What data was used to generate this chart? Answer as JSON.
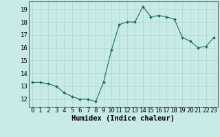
{
  "x": [
    0,
    1,
    2,
    3,
    4,
    5,
    6,
    7,
    8,
    9,
    10,
    11,
    12,
    13,
    14,
    15,
    16,
    17,
    18,
    19,
    20,
    21,
    22,
    23
  ],
  "y": [
    13.3,
    13.3,
    13.2,
    13.0,
    12.5,
    12.2,
    12.0,
    12.0,
    11.8,
    13.3,
    15.8,
    17.8,
    18.0,
    18.0,
    19.2,
    18.4,
    18.5,
    18.4,
    18.2,
    16.8,
    16.5,
    16.0,
    16.1,
    16.8
  ],
  "line_color": "#1a6b5a",
  "marker_color": "#1a6b5a",
  "bg_color": "#c8ebe8",
  "grid_color_major": "#b0d4d0",
  "xlabel": "Humidex (Indice chaleur)",
  "xlabel_fontsize": 7.5,
  "ylabel_ticks": [
    12,
    13,
    14,
    15,
    16,
    17,
    18,
    19
  ],
  "ylim": [
    11.4,
    19.6
  ],
  "xlim": [
    -0.5,
    23.5
  ],
  "tick_fontsize": 6.5
}
